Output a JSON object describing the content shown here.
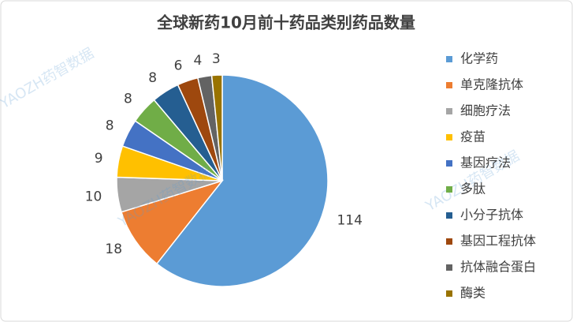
{
  "chart_data": {
    "type": "pie",
    "title": "全球新药10月前十药品类别药品数量",
    "watermark": "YAOZH药智数据",
    "categories": [
      "化学药",
      "单克隆抗体",
      "细胞疗法",
      "疫苗",
      "基因疗法",
      "多肽",
      "小分子抗体",
      "基因工程抗体",
      "抗体融合蛋白",
      "酶类"
    ],
    "values": [
      114,
      18,
      10,
      9,
      8,
      8,
      8,
      6,
      4,
      3
    ],
    "colors": [
      "#5b9bd5",
      "#ed7d31",
      "#a5a5a5",
      "#ffc000",
      "#4472c4",
      "#70ad47",
      "#255e91",
      "#9e480e",
      "#636363",
      "#997300"
    ],
    "legend": "right"
  }
}
